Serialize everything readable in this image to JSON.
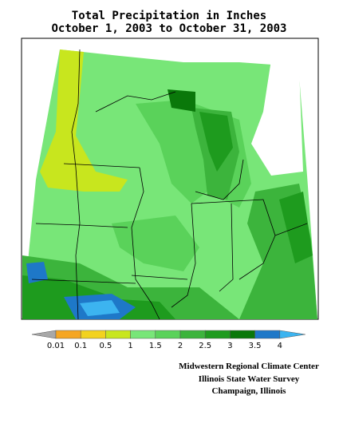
{
  "title": [
    "Total Precipitation in Inches",
    "October 1, 2003 to October 31, 2003"
  ],
  "legend": {
    "ticks": [
      0.01,
      0.1,
      0.5,
      1,
      1.5,
      2,
      2.5,
      3,
      3.5,
      4
    ],
    "colors": [
      "#a8a8a8",
      "#f5a623",
      "#f2d21e",
      "#c8e61e",
      "#78e678",
      "#5ad25a",
      "#3cb43c",
      "#1e9b1e",
      "#0a780a",
      "#1e78c8",
      "#3cb4f0"
    ]
  },
  "credits": [
    "Midwestern Regional Climate Center",
    "Illinois State Water Survey",
    "Champaign, Illinois"
  ]
}
